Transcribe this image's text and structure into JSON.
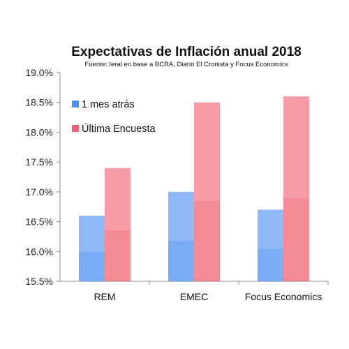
{
  "chart_data": {
    "type": "bar",
    "title": "Expectativas de Inflación anual 2018",
    "subtitle": "Fuente: Ieral en base a BCRA, Diario El Cronista y Focus Economics",
    "categories": [
      "REM",
      "EMEC",
      "Focus Economics"
    ],
    "series": [
      {
        "name": "1 mes atrás",
        "values": [
          16.6,
          17.0,
          16.7
        ],
        "color": "#4a8ef0"
      },
      {
        "name": "Última Encuesta",
        "values": [
          17.4,
          18.5,
          18.6
        ],
        "color": "#f06070"
      }
    ],
    "ylim": [
      15.5,
      19.0
    ],
    "yticks": [
      "15.5%",
      "16.0%",
      "16.5%",
      "17.0%",
      "17.5%",
      "18.0%",
      "18.5%",
      "19.0%"
    ],
    "ytick_values": [
      15.5,
      16.0,
      16.5,
      17.0,
      17.5,
      18.0,
      18.5,
      19.0
    ],
    "grid": false,
    "legend_position": "top-left",
    "xlabel": "",
    "ylabel": ""
  }
}
